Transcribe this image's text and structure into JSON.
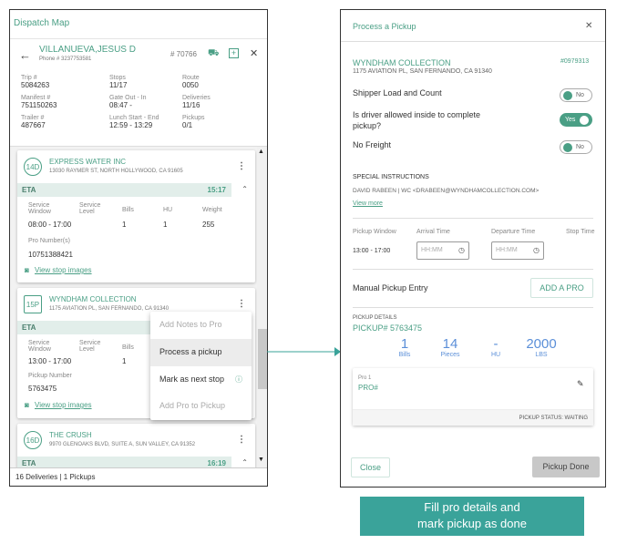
{
  "left": {
    "app_title": "Dispatch Map",
    "driver": {
      "name": "VILLANUEVA,JESUS D",
      "phone": "Phone # 3237753581",
      "number": "# 70766"
    },
    "info": [
      {
        "label": "Trip #",
        "value": "5084263"
      },
      {
        "label": "Stops",
        "value": "11/17"
      },
      {
        "label": "Route",
        "value": "0050"
      },
      {
        "label": "Manifest #",
        "value": "751150263"
      },
      {
        "label": "Gate Out - In",
        "value": "08:47 -"
      },
      {
        "label": "Deliveries",
        "value": "11/16"
      },
      {
        "label": "Trailer #",
        "value": "487667"
      },
      {
        "label": "Lunch Start - End",
        "value": "12:59 - 13:29"
      },
      {
        "label": "Pickups",
        "value": "0/1"
      }
    ],
    "stops": [
      {
        "badge": "14D",
        "name": "EXPRESS WATER INC",
        "address": "13030 RAYMER ST, NORTH HOLLYWOOD, CA 91605",
        "eta_label": "ETA",
        "eta": "15:17",
        "service_window_label": "Service Window",
        "service_window": "08:00 - 17:00",
        "service_level_label": "Service Level",
        "bills_label": "Bills",
        "bills": "1",
        "hu_label": "HU",
        "hu": "1",
        "weight_label": "Weight",
        "weight": "255",
        "pro_label": "Pro Number(s)",
        "pro": "10751388421",
        "images_link": "View stop images"
      },
      {
        "badge": "15P",
        "name": "WYNDHAM COLLECTION",
        "address": "1175 AVIATION PL, SAN FERNANDO, CA 91340",
        "eta_label": "ETA",
        "service_window_label": "Service Window",
        "service_window": "13:00 - 17:00",
        "service_level_label": "Service Level",
        "bills_label": "Bills",
        "bills": "1",
        "pickup_label": "Pickup Number",
        "pickup": "5763475",
        "images_link": "View stop images"
      },
      {
        "badge": "16D",
        "name": "THE CRUSH",
        "address": "9970 GLENOAKS BLVD, SUITE A, SUN VALLEY, CA 91352",
        "eta_label": "ETA",
        "eta": "16:19"
      }
    ],
    "menu": [
      "Add Notes to Pro",
      "Process a pickup",
      "Mark as next stop",
      "Add Pro to Pickup"
    ],
    "footer": "16 Deliveries | 1 Pickups"
  },
  "right": {
    "title": "Process a Pickup",
    "company": "WYNDHAM COLLECTION",
    "address": "1175 AVIATION PL, SAN FERNANDO, CA 91340",
    "number": "#0979313",
    "toggles": [
      {
        "label": "Shipper Load and Count",
        "state": "No"
      },
      {
        "label": "Is driver allowed inside to complete pickup?",
        "state": "Yes"
      },
      {
        "label": "No Freight",
        "state": "No"
      }
    ],
    "special_label": "SPECIAL INSTRUCTIONS",
    "special_text": "DAVID RABEEN | WC <DRABEEN@WYNDHAMCOLLECTION.COM>",
    "view_more": "View more",
    "pickup_window_label": "Pickup Window",
    "pickup_window": "13:00 - 17:00",
    "arrival_label": "Arrival Time",
    "departure_label": "Departure Time",
    "stop_time_label": "Stop Time",
    "time_placeholder": "HH:MM",
    "manual_label": "Manual Pickup Entry",
    "add_pro": "ADD A PRO",
    "details_label": "PICKUP DETAILS",
    "pickup_no": "PICKUP# 5763475",
    "stats": [
      {
        "n": "1",
        "l": "Bills"
      },
      {
        "n": "14",
        "l": "Pieces"
      },
      {
        "n": "-",
        "l": "HU"
      },
      {
        "n": "2000",
        "l": "LBS"
      }
    ],
    "pro_title": "Pro 1",
    "pro_value": "PRO#",
    "status": "PICKUP STATUS: WAITING",
    "close": "Close",
    "done": "Pickup Done"
  },
  "caption": {
    "line1": "Fill pro details and",
    "line2": "mark pickup as done"
  },
  "colors": {
    "accent": "#4a9f85",
    "caption_bg": "#3aa39a",
    "stats": "#5b8fd8"
  }
}
